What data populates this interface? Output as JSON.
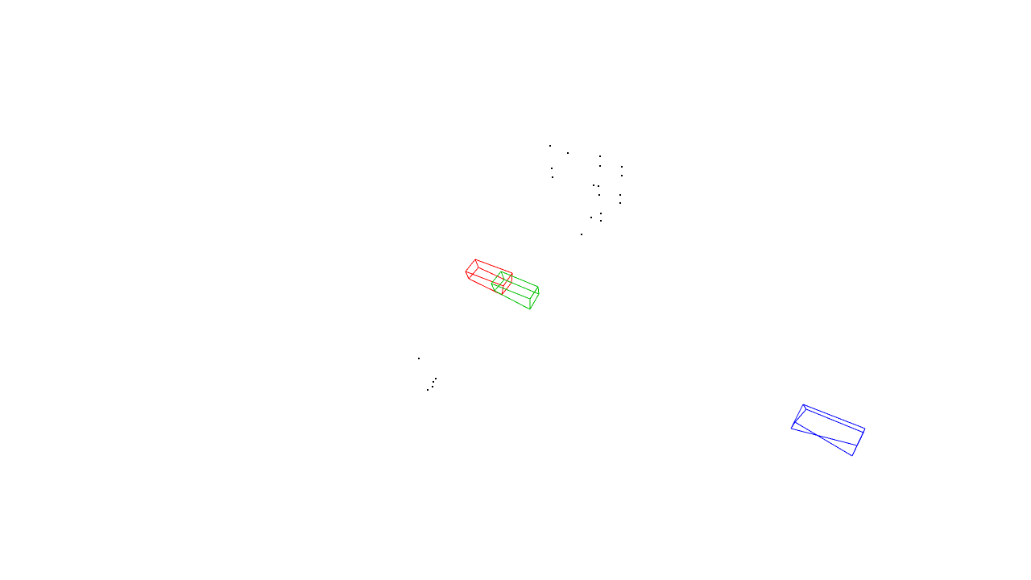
{
  "scene": {
    "background": "#ffffff",
    "point_color": "#000000",
    "boxes": [
      {
        "name": "red-box",
        "color": "#ff0000"
      },
      {
        "name": "green-box",
        "color": "#00c000"
      },
      {
        "name": "blue-box",
        "color": "#0000ff"
      }
    ]
  }
}
